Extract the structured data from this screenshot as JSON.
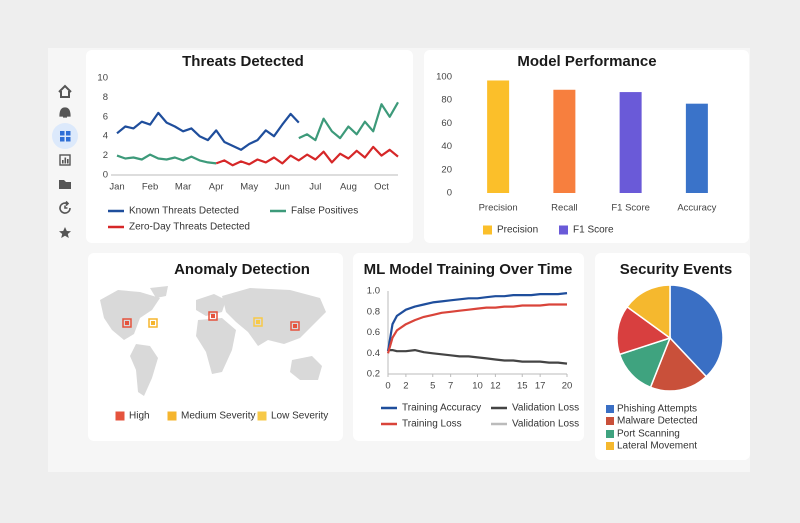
{
  "chart_data": [
    {
      "type": "line",
      "title": "Threats Detected",
      "categories": [
        "Jan",
        null,
        null,
        null,
        "Feb",
        null,
        null,
        null,
        "Mar",
        null,
        null,
        null,
        "Apr",
        null,
        null,
        null,
        "May",
        null,
        null,
        null,
        "Jun",
        null,
        null,
        null,
        "Jul",
        null,
        null,
        null,
        "Aug",
        null,
        null,
        null,
        "Oct",
        null,
        null
      ],
      "series": [
        {
          "name": "Known Threats Detected",
          "color": "#1f4e9c",
          "values": [
            4.3,
            5.0,
            4.8,
            5.5,
            5.2,
            6.4,
            5.4,
            5.0,
            4.5,
            4.8,
            4.0,
            3.6,
            4.6,
            3.4,
            3.0,
            2.6,
            3.2,
            3.6,
            4.6,
            4.0,
            5.2,
            6.3,
            5.4,
            null,
            null,
            null,
            null,
            null,
            null,
            null,
            null,
            null,
            null,
            null,
            null
          ]
        },
        {
          "name": "False Positives",
          "color": "#3d9a7a",
          "values": [
            2.0,
            1.7,
            1.8,
            1.6,
            2.1,
            1.7,
            1.6,
            1.8,
            1.5,
            1.9,
            1.5,
            1.3,
            1.2,
            null,
            null,
            null,
            null,
            null,
            null,
            null,
            null,
            null,
            3.8,
            4.2,
            3.6,
            5.8,
            4.5,
            3.8,
            5.0,
            4.2,
            5.5,
            4.5,
            7.3,
            6.0,
            7.5
          ]
        },
        {
          "name": "Zero-Day Threats Detected",
          "color": "#d62728",
          "values": [
            null,
            null,
            null,
            null,
            null,
            null,
            null,
            null,
            null,
            null,
            null,
            null,
            1.2,
            1.5,
            1.0,
            1.4,
            1.1,
            1.6,
            1.3,
            1.8,
            1.2,
            2.0,
            1.5,
            2.1,
            1.6,
            2.4,
            1.3,
            2.2,
            1.7,
            2.5,
            1.8,
            2.9,
            2.0,
            2.6,
            1.9
          ]
        }
      ],
      "ylim": [
        0,
        10
      ],
      "yticks": [
        0,
        2,
        4,
        6,
        8,
        10
      ],
      "grid": false
    },
    {
      "type": "bar",
      "title": "Model Performance",
      "categories": [
        "Precision",
        "Recall",
        "F1 Score",
        "Accuracy"
      ],
      "values": [
        97,
        89,
        87,
        77
      ],
      "colors": [
        "#fbbf2a",
        "#f77f3e",
        "#6a5ad8",
        "#3a73c9"
      ],
      "ylim": [
        0,
        100
      ],
      "yticks": [
        0,
        20,
        40,
        60,
        80,
        100
      ],
      "grid": false,
      "legend": [
        {
          "name": "Precision",
          "color": "#fbbf2a"
        },
        {
          "name": "F1 Score",
          "color": "#6a5ad8"
        }
      ]
    },
    {
      "type": "map",
      "title": "Anomaly Detection",
      "legend": [
        {
          "name": "High",
          "color": "#e5533d"
        },
        {
          "name": "Medium Severity",
          "color": "#f5b52e"
        },
        {
          "name": "Low Severity",
          "color": "#f7c948"
        }
      ]
    },
    {
      "type": "line",
      "title": "ML Model Training Over Time",
      "x": [
        0,
        0.5,
        1,
        2,
        3,
        4,
        5,
        6,
        7,
        8,
        9,
        10,
        11,
        12,
        13,
        14,
        15,
        16,
        17,
        18,
        19,
        20
      ],
      "series": [
        {
          "name": "Training Accuracy",
          "color": "#1f4e9c",
          "values": [
            0.42,
            0.68,
            0.76,
            0.82,
            0.85,
            0.87,
            0.89,
            0.9,
            0.91,
            0.92,
            0.93,
            0.93,
            0.94,
            0.95,
            0.95,
            0.96,
            0.96,
            0.96,
            0.97,
            0.97,
            0.97,
            0.98
          ]
        },
        {
          "name": "Validation Loss",
          "color": "#444444",
          "values": [
            0.43,
            0.43,
            0.42,
            0.42,
            0.43,
            0.41,
            0.4,
            0.39,
            0.38,
            0.37,
            0.37,
            0.36,
            0.35,
            0.34,
            0.33,
            0.33,
            0.32,
            0.32,
            0.32,
            0.31,
            0.31,
            0.3
          ]
        },
        {
          "name": "Training Loss",
          "color": "#d9443a",
          "values": [
            0.4,
            0.55,
            0.62,
            0.68,
            0.72,
            0.75,
            0.77,
            0.79,
            0.8,
            0.81,
            0.82,
            0.83,
            0.84,
            0.84,
            0.85,
            0.85,
            0.86,
            0.86,
            0.86,
            0.87,
            0.87,
            0.87
          ]
        },
        {
          "name": "Validation Loss",
          "color": "#bbbbbb",
          "values": [
            null,
            null,
            null,
            null,
            null,
            null,
            null,
            null,
            null,
            null,
            null,
            null,
            null,
            null,
            null,
            null,
            null,
            null,
            null,
            null,
            null,
            null
          ]
        }
      ],
      "xlim": [
        0,
        20
      ],
      "xticks": [
        0,
        2,
        5,
        7,
        10,
        12,
        15,
        17,
        20
      ],
      "ylim": [
        0.2,
        1.0
      ],
      "yticks": [
        0.2,
        0.4,
        0.6,
        0.8,
        {
          "value": 1.0,
          "label": "1.0"
        }
      ],
      "grid": false
    },
    {
      "type": "pie",
      "title": "Security Events",
      "categories": [
        "Phishing Attempts",
        "Malware Detected",
        "Port Scanning",
        null,
        "Lateral Movement"
      ],
      "values": [
        38,
        18,
        14,
        15,
        15
      ],
      "colors": [
        "#3a6fc4",
        "#c9503a",
        "#3fa37f",
        "#d83f3f",
        "#f5b82e"
      ]
    }
  ]
}
